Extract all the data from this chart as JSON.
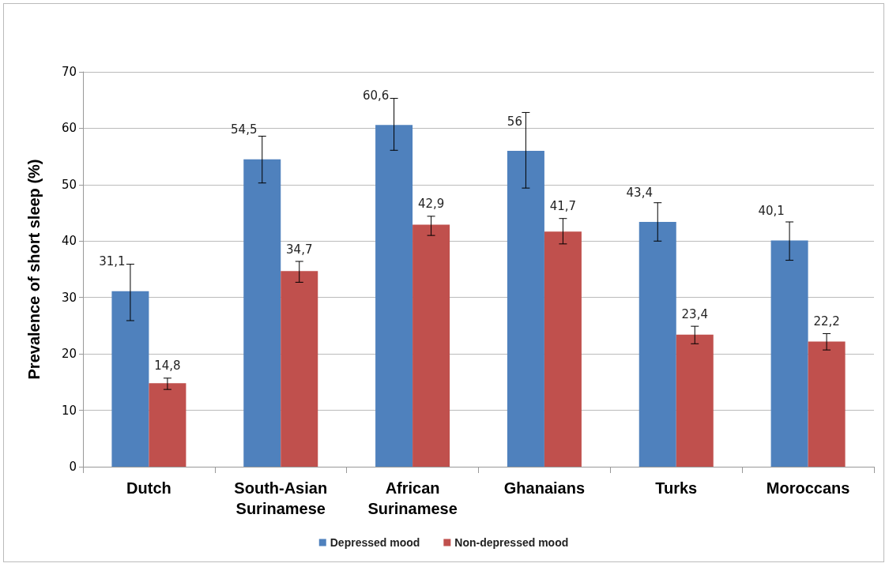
{
  "chart_data": {
    "type": "bar",
    "categories": [
      "Dutch",
      "South-Asian\nSurinamese",
      "African\nSurinamese",
      "Ghanaians",
      "Turks",
      "Moroccans"
    ],
    "ylabel": "Prevalence of short sleep (%)",
    "ylim": [
      0,
      70
    ],
    "yticks": [
      0,
      10,
      20,
      30,
      40,
      50,
      60,
      70
    ],
    "grid": "y",
    "legend": "bottom",
    "series": [
      {
        "name": "Depressed mood",
        "color": "#4f81bd",
        "values": [
          31.1,
          54.5,
          60.6,
          56,
          43.4,
          40.1
        ],
        "value_labels": [
          "31,1",
          "54,5",
          "60,6",
          "56",
          "43,4",
          "40,1"
        ],
        "errors": [
          [
            25.9,
            35.9
          ],
          [
            50.3,
            58.6
          ],
          [
            56.1,
            65.3
          ],
          [
            49.4,
            62.8
          ],
          [
            40.0,
            46.8
          ],
          [
            36.6,
            43.4
          ]
        ]
      },
      {
        "name": "Non-depressed mood",
        "color": "#c0504d",
        "values": [
          14.8,
          34.7,
          42.9,
          41.7,
          23.4,
          22.2
        ],
        "value_labels": [
          "14,8",
          "34,7",
          "42,9",
          "41,7",
          "23,4",
          "22,2"
        ],
        "errors": [
          [
            13.7,
            15.7
          ],
          [
            32.7,
            36.4
          ],
          [
            41.0,
            44.4
          ],
          [
            39.5,
            44.0
          ],
          [
            21.8,
            24.9
          ],
          [
            20.7,
            23.6
          ]
        ]
      }
    ]
  }
}
